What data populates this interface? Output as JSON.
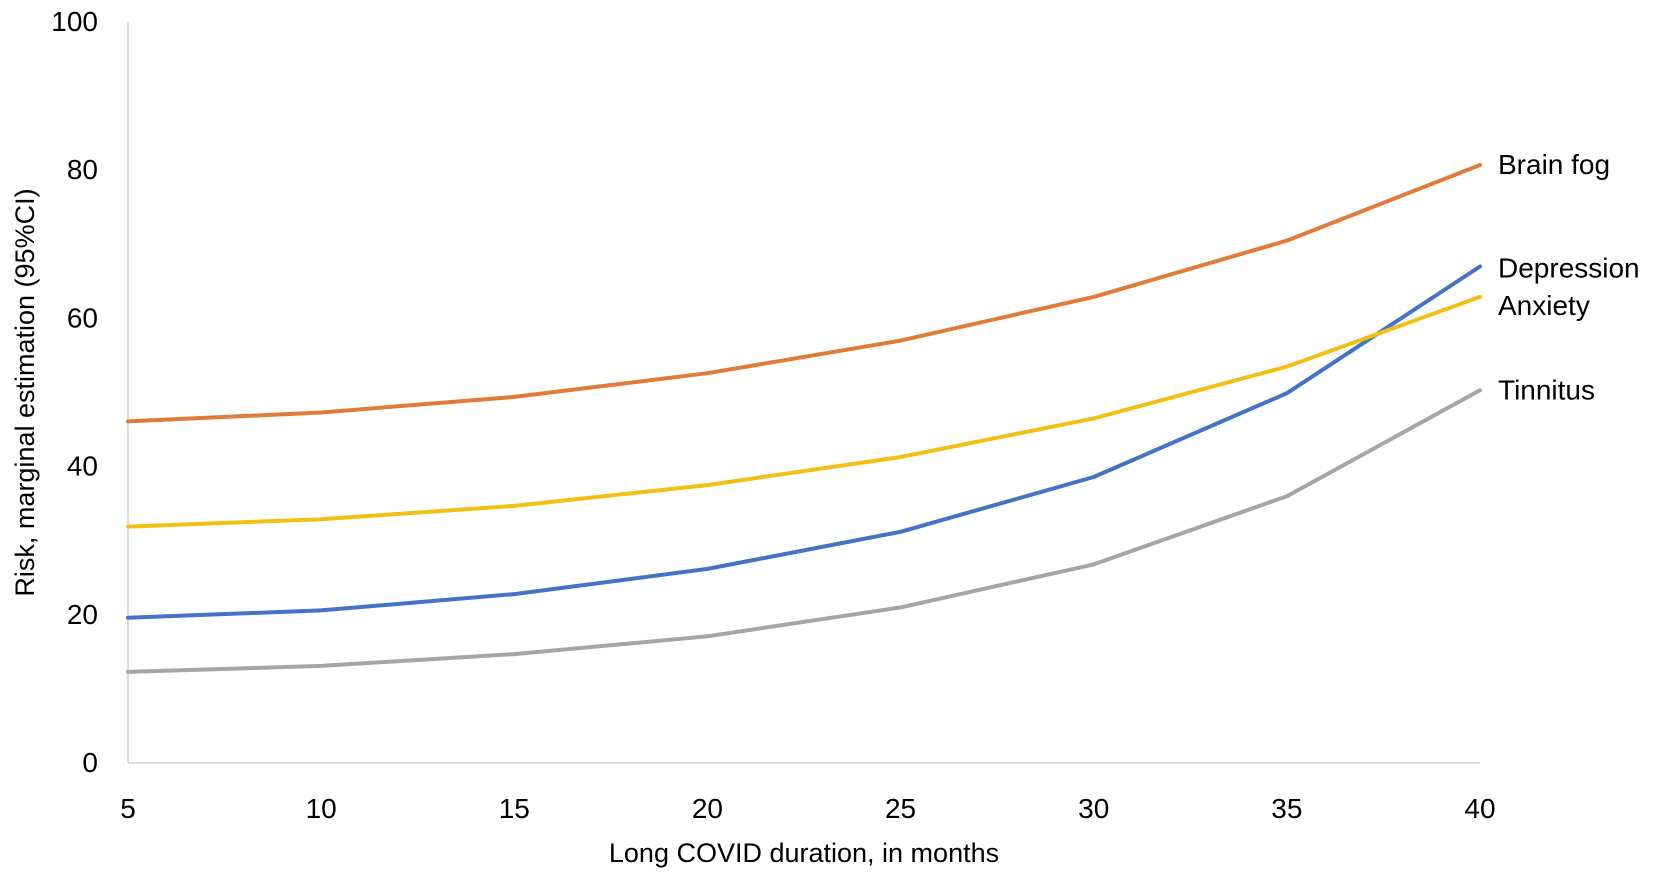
{
  "chart_data": {
    "type": "line",
    "title": "",
    "xlabel": "Long COVID duration, in months",
    "ylabel": "Risk, marginal estimation (95%CI)",
    "x": [
      5,
      10,
      15,
      20,
      25,
      30,
      35,
      40
    ],
    "xlim": [
      5,
      40
    ],
    "ylim": [
      0,
      100
    ],
    "x_ticks": [
      5,
      10,
      15,
      20,
      25,
      30,
      35,
      40
    ],
    "y_ticks": [
      0,
      20,
      40,
      60,
      80,
      100
    ],
    "grid": false,
    "legend": "inline labels at right end of each line",
    "series": [
      {
        "name": "Brain fog",
        "color": "#E07B39",
        "values": [
          46.1,
          47.3,
          49.4,
          52.6,
          57.0,
          62.9,
          70.5,
          80.7
        ]
      },
      {
        "name": "Depression",
        "color": "#4472C4",
        "values": [
          19.6,
          20.6,
          22.8,
          26.2,
          31.2,
          38.6,
          49.9,
          67.0
        ]
      },
      {
        "name": "Anxiety",
        "color": "#F2C015",
        "values": [
          31.9,
          32.9,
          34.7,
          37.5,
          41.3,
          46.5,
          53.5,
          62.9
        ]
      },
      {
        "name": "Tinnitus",
        "color": "#A5A5A5",
        "values": [
          12.3,
          13.1,
          14.7,
          17.1,
          21.0,
          26.8,
          36.0,
          50.3
        ]
      }
    ]
  }
}
